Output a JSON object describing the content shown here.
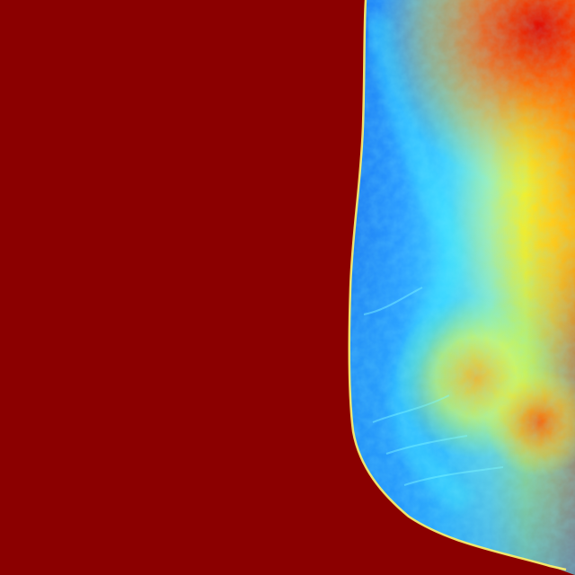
{
  "image": {
    "kind": "pseudocolor-mammogram",
    "colormap": "jet",
    "laterality_side": "right",
    "colors": {
      "background": "#8b0000",
      "edge_highlight": "#fff36a",
      "low": "#1e7ff2",
      "low_mid": "#2fb8ff",
      "mid": "#56e8f5",
      "mid_high": "#d8ff3c",
      "high": "#ffc21c",
      "very_high": "#ff6a00",
      "max": "#e00000"
    }
  }
}
